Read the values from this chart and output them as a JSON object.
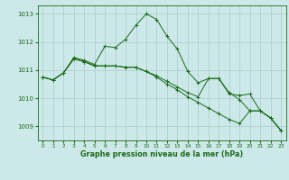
{
  "background_color": "#cce8e8",
  "grid_color": "#aacccc",
  "line_color": "#1a6b1a",
  "xlabel": "Graphe pression niveau de la mer (hPa)",
  "xlim": [
    -0.5,
    23.5
  ],
  "ylim": [
    1008.5,
    1013.3
  ],
  "yticks": [
    1009,
    1010,
    1011,
    1012,
    1013
  ],
  "xticks": [
    0,
    1,
    2,
    3,
    4,
    5,
    6,
    7,
    8,
    9,
    10,
    11,
    12,
    13,
    14,
    15,
    16,
    17,
    18,
    19,
    20,
    21,
    22,
    23
  ],
  "series1_x": [
    0,
    1,
    2,
    3,
    4,
    5,
    6,
    7,
    8,
    9,
    10,
    11,
    12,
    13,
    14,
    15,
    16,
    17,
    18,
    19,
    20,
    21,
    22,
    23
  ],
  "series1_y": [
    1010.75,
    1010.65,
    1010.9,
    1011.45,
    1011.35,
    1011.2,
    1011.85,
    1011.8,
    1012.1,
    1012.6,
    1013.0,
    1012.8,
    1012.2,
    1011.75,
    1010.95,
    1010.55,
    1010.7,
    1010.7,
    1010.2,
    1009.95,
    1009.55,
    1009.55,
    1009.3,
    1008.85
  ],
  "series2_x": [
    0,
    1,
    2,
    3,
    4,
    5,
    6,
    7,
    8,
    9,
    10,
    11,
    12,
    13,
    14,
    15,
    16,
    17,
    18,
    19,
    20,
    21,
    22,
    23
  ],
  "series2_y": [
    1010.75,
    1010.65,
    1010.9,
    1011.4,
    1011.3,
    1011.15,
    1011.15,
    1011.15,
    1011.1,
    1011.1,
    1010.95,
    1010.8,
    1010.6,
    1010.4,
    1010.2,
    1010.05,
    1010.7,
    1010.7,
    1010.15,
    1010.1,
    1010.15,
    1009.55,
    1009.3,
    1008.85
  ],
  "series3_x": [
    0,
    1,
    2,
    3,
    4,
    5,
    6,
    7,
    8,
    9,
    10,
    11,
    12,
    13,
    14,
    15,
    16,
    17,
    18,
    19,
    20,
    21,
    22,
    23
  ],
  "series3_y": [
    1010.75,
    1010.65,
    1010.9,
    1011.4,
    1011.3,
    1011.15,
    1011.15,
    1011.15,
    1011.1,
    1011.1,
    1010.95,
    1010.75,
    1010.5,
    1010.3,
    1010.05,
    1009.85,
    1009.65,
    1009.45,
    1009.25,
    1009.1,
    1009.55,
    1009.55,
    1009.3,
    1008.85
  ]
}
